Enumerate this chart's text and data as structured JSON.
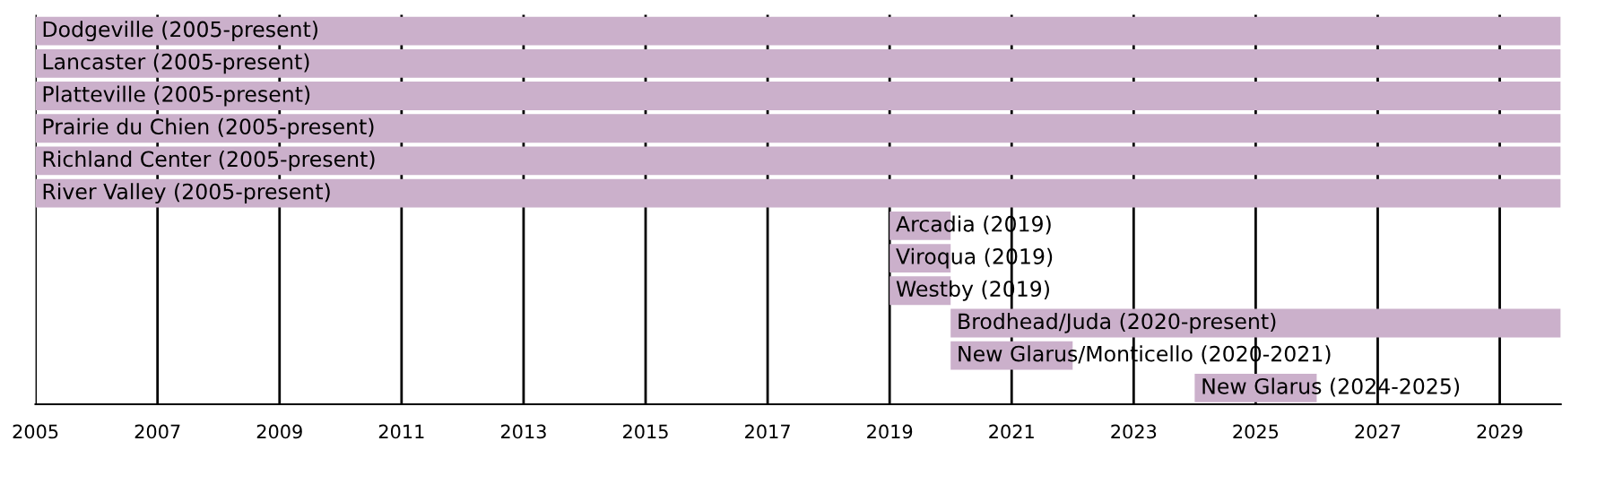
{
  "chart_data": {
    "type": "bar",
    "orientation": "horizontal",
    "categories": [
      "Dodgeville (2005-present)",
      "Lancaster (2005-present)",
      "Platteville (2005-present)",
      "Prairie du Chien (2005-present)",
      "Richland Center (2005-present)",
      "River Valley (2005-present)",
      "Arcadia (2019)",
      "Viroqua (2019)",
      "Westby (2019)",
      "Brodhead/Juda (2020-present)",
      "New Glarus/Monticello (2020-2021)",
      "New Glarus (2024-2025)"
    ],
    "base": [
      2005,
      2005,
      2005,
      2005,
      2005,
      2005,
      2019,
      2019,
      2019,
      2020,
      2020,
      2024
    ],
    "values": [
      25,
      25,
      25,
      25,
      25,
      25,
      1,
      1,
      1,
      10,
      2,
      2
    ],
    "color": "#cbb0cb",
    "xlim": [
      2005,
      2030
    ],
    "xticks": [
      2005,
      2007,
      2009,
      2011,
      2013,
      2015,
      2017,
      2019,
      2021,
      2023,
      2025,
      2027,
      2029
    ],
    "grid": "x",
    "legend": false
  }
}
